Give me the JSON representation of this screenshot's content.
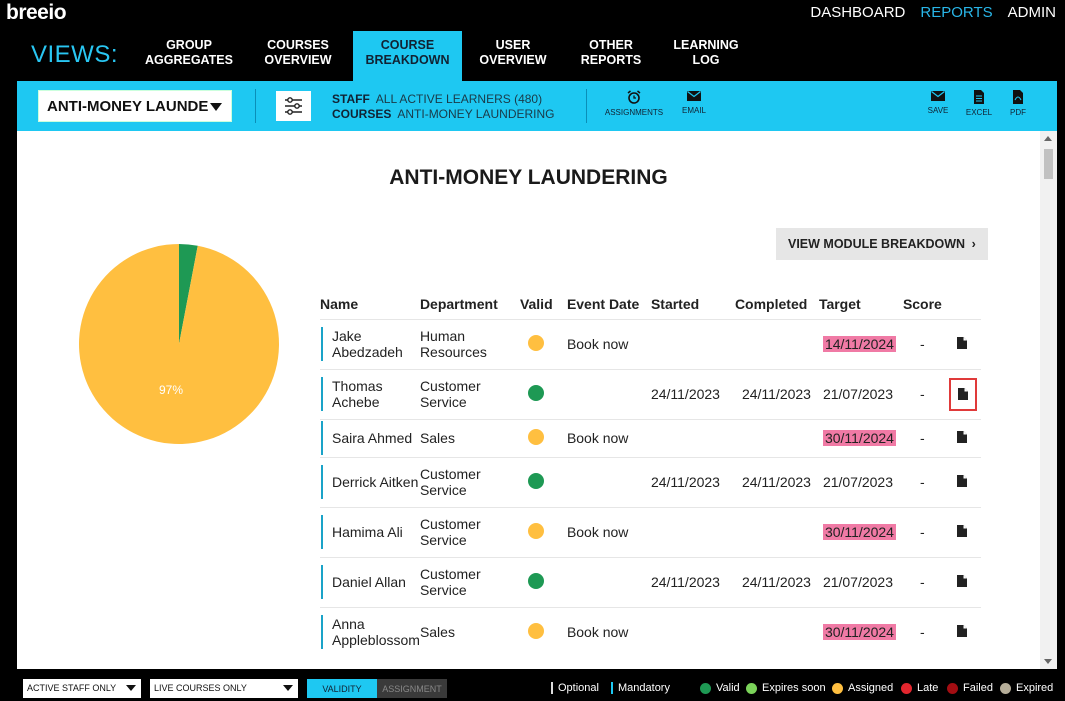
{
  "app": {
    "logo": "breeio",
    "top_nav": [
      "DASHBOARD",
      "REPORTS",
      "ADMIN"
    ]
  },
  "views": {
    "label": "VIEWS:",
    "tabs": [
      {
        "line1": "GROUP",
        "line2": "AGGREGATES"
      },
      {
        "line1": "COURSES",
        "line2": "OVERVIEW"
      },
      {
        "line1": "COURSE",
        "line2": "BREAKDOWN"
      },
      {
        "line1": "USER",
        "line2": "OVERVIEW"
      },
      {
        "line1": "OTHER",
        "line2": "REPORTS"
      },
      {
        "line1": "LEARNING",
        "line2": "LOG"
      }
    ]
  },
  "toolbar": {
    "course_select": "ANTI-MONEY LAUNDE",
    "staff_label": "STAFF",
    "staff_value": "ALL ACTIVE LEARNERS (480)",
    "courses_label": "COURSES",
    "courses_value": "ANTI-MONEY LAUNDERING",
    "actions": [
      "ASSIGNMENTS",
      "EMAIL",
      "SAVE",
      "EXCEL",
      "PDF"
    ]
  },
  "report": {
    "title": "ANTI-MONEY LAUNDERING",
    "module_button": "VIEW MODULE BREAKDOWN",
    "module_button_chevron": "›"
  },
  "chart_data": {
    "type": "pie",
    "values": [
      97,
      3
    ],
    "colors": [
      "#ffbf40",
      "#1e9954"
    ],
    "labels": [
      "97%",
      ""
    ]
  },
  "table": {
    "columns": [
      "Name",
      "Department",
      "Valid",
      "Event Date",
      "Started",
      "Completed",
      "Target",
      "Score"
    ],
    "rows": [
      {
        "name": "Jake Abedzadeh",
        "dept": "Human Resources",
        "status": "assigned",
        "event": "Book now",
        "started": "",
        "completed": "",
        "target": "14/11/2024",
        "late": true,
        "score": "-"
      },
      {
        "name": "Thomas Achebe",
        "dept": "Customer Service",
        "status": "valid",
        "event": "",
        "started": "24/11/2023",
        "completed": "24/11/2023",
        "target": "21/07/2023",
        "late": false,
        "score": "-"
      },
      {
        "name": "Saira Ahmed",
        "dept": "Sales",
        "status": "assigned",
        "event": "Book now",
        "started": "",
        "completed": "",
        "target": "30/11/2024",
        "late": true,
        "score": "-"
      },
      {
        "name": "Derrick Aitken",
        "dept": "Customer Service",
        "status": "valid",
        "event": "",
        "started": "24/11/2023",
        "completed": "24/11/2023",
        "target": "21/07/2023",
        "late": false,
        "score": "-"
      },
      {
        "name": "Hamima Ali",
        "dept": "Customer Service",
        "status": "assigned",
        "event": "Book now",
        "started": "",
        "completed": "",
        "target": "30/11/2024",
        "late": true,
        "score": "-"
      },
      {
        "name": "Daniel Allan",
        "dept": "Customer Service",
        "status": "valid",
        "event": "",
        "started": "24/11/2023",
        "completed": "24/11/2023",
        "target": "21/07/2023",
        "late": false,
        "score": "-"
      },
      {
        "name": "Anna Appleblossom",
        "dept": "Sales",
        "status": "assigned",
        "event": "Book now",
        "started": "",
        "completed": "",
        "target": "30/11/2024",
        "late": true,
        "score": "-"
      }
    ]
  },
  "status_colors": {
    "valid": "#1e9954",
    "expires_soon": "#7bd35a",
    "assigned": "#ffbf40",
    "late": "#e3262e",
    "failed": "#a30d12",
    "expired": "#b5ad98"
  },
  "footer": {
    "filter1": "ACTIVE STAFF ONLY",
    "filter2": "LIVE COURSES ONLY",
    "seg_validity": "VALIDITY",
    "seg_assignment": "ASSIGNMENT",
    "legend_optional": "Optional",
    "legend_mandatory": "Mandatory",
    "legend_valid": "Valid",
    "legend_expires": "Expires soon",
    "legend_assigned": "Assigned",
    "legend_late": "Late",
    "legend_failed": "Failed",
    "legend_expired": "Expired"
  }
}
